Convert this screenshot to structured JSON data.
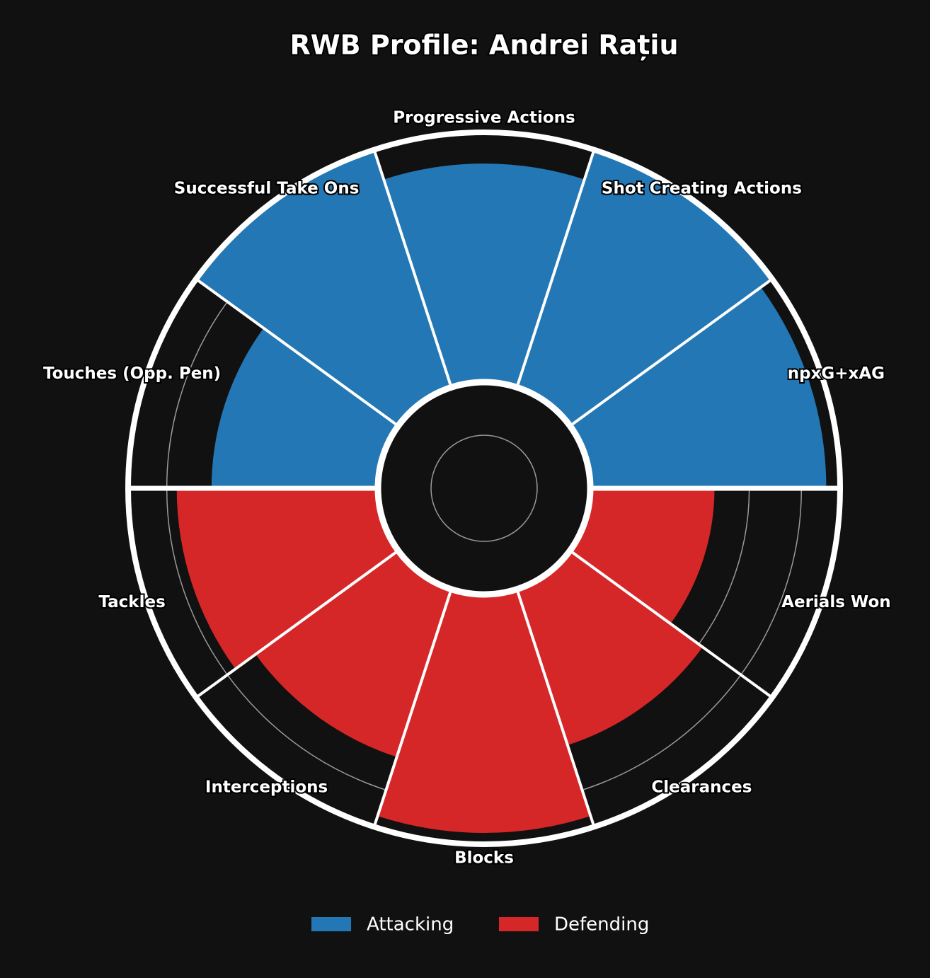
{
  "chart_data": {
    "type": "pizza",
    "title": "RWB Profile: Andrei Rațiu",
    "rlim": [
      0,
      100
    ],
    "rticks": [
      64,
      85
    ],
    "grid": true,
    "series": [
      {
        "name": "Attacking",
        "color": "#2377b4",
        "categories": [
          "npxG+xAG",
          "Shot Creating Actions",
          "Progressive Actions",
          "Successful Take Ons",
          "Touches (Opp. Pen)"
        ],
        "values": [
          95,
          100,
          88,
          100,
          67
        ]
      },
      {
        "name": "Defending",
        "color": "#d62728",
        "categories": [
          "Tackles",
          "Interceptions",
          "Blocks",
          "Clearances",
          "Aerials Won"
        ],
        "values": [
          81,
          71,
          96,
          66,
          50
        ]
      }
    ]
  }
}
